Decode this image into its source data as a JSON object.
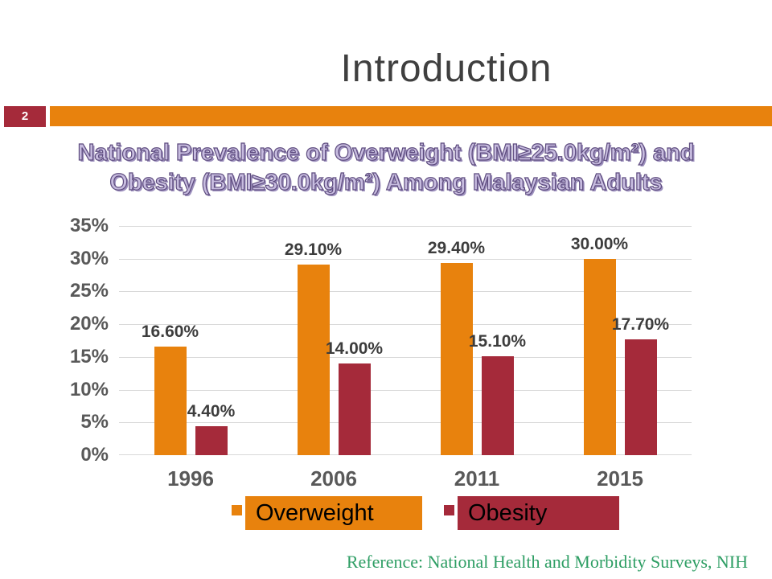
{
  "slide": {
    "page_number": "2",
    "title": "Introduction",
    "footer_reference": "Reference: National Health and Morbidity Surveys, NIH"
  },
  "colors": {
    "accent_orange": "#E8820D",
    "maroon": "#A52A3A",
    "slide_title_gray": "#3F3F3F",
    "axis_label_gray": "#595959",
    "data_label_gray": "#3D3D3D",
    "gridline_gray": "#D9D9D9",
    "footer_green": "#2E9E64",
    "chart_title_fill": "#C7BCDF",
    "chart_title_outline": "#5D4B7E"
  },
  "chart_data": {
    "type": "bar",
    "title": "National Prevalence of Overweight (BMI≥25.0kg/m²) and Obesity (BMI≥30.0kg/m²) Among Malaysian Adults",
    "title_lines": [
      "National Prevalence of Overweight (BMI≥25.0kg/m²) and",
      "Obesity (BMI≥30.0kg/m²) Among Malaysian Adults"
    ],
    "categories": [
      "1996",
      "2006",
      "2011",
      "2015"
    ],
    "series": [
      {
        "name": "Overweight",
        "color": "#E8820D",
        "values": [
          16.6,
          29.1,
          29.4,
          30.0
        ],
        "data_labels": [
          "16.60%",
          "29.10%",
          "29.40%",
          "30.00%"
        ]
      },
      {
        "name": "Obesity",
        "color": "#A52A3A",
        "values": [
          4.4,
          14.0,
          15.1,
          17.7
        ],
        "data_labels": [
          "4.40%",
          "14.00%",
          "15.10%",
          "17.70%"
        ]
      }
    ],
    "y_axis": {
      "min": 0,
      "max": 35,
      "step": 5,
      "tick_labels": [
        "0%",
        "5%",
        "10%",
        "15%",
        "20%",
        "25%",
        "30%",
        "35%"
      ]
    },
    "xlabel": "",
    "ylabel": "",
    "grid": true,
    "legend_position": "bottom"
  }
}
